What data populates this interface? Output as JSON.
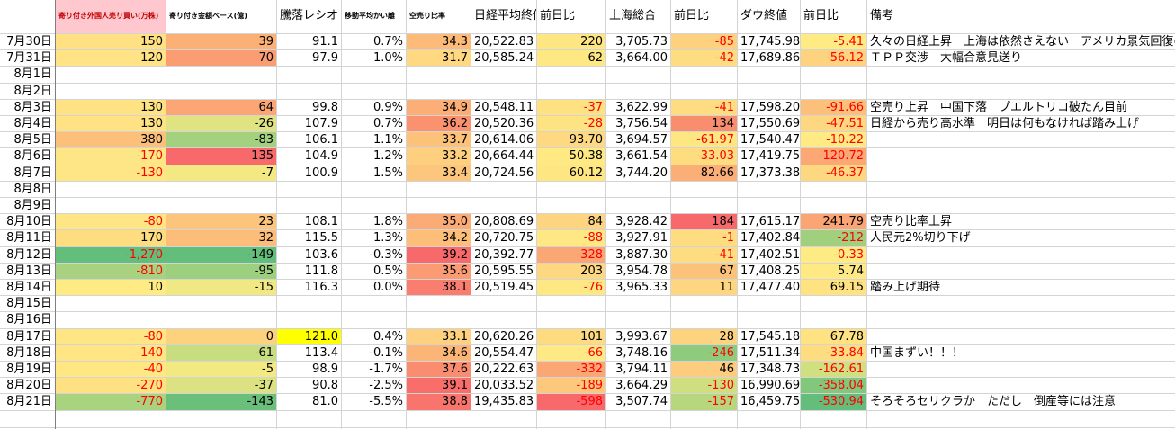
{
  "table": {
    "header": [
      "寄り付き外国人売り買い(万株)",
      "寄り付き金額ベース(億)",
      "騰落レシオ",
      "移動平均かい離",
      "空売り比率",
      "日経平均終値",
      "前日比",
      "上海総合",
      "前日比",
      "ダウ終値",
      "前日比",
      "備考"
    ],
    "header_fill": {
      "column": 0,
      "color": "#ffc7ce",
      "text_color": "#c00000"
    },
    "small_header_columns": [
      0,
      1,
      3,
      4
    ],
    "negative_red_columns": [
      0,
      6,
      8,
      10
    ],
    "negative_color": "#ff0000",
    "rows": [
      {
        "date": "7月30日",
        "cells": [
          "150",
          "39",
          "91.1",
          "0.7%",
          "34.3",
          "20,522.83",
          "220",
          "3,705.73",
          "-85",
          "17,745.98",
          "-5.41",
          "久々の日経上昇　上海は依然さえない　アメリカ景気回復の流れ"
        ],
        "fills": [
          "#ffe083",
          "#fbb176",
          null,
          null,
          "#fcbb78",
          null,
          "#fee683",
          null,
          "#fed17f",
          null,
          "#ffeb84",
          null
        ]
      },
      {
        "date": "7月31日",
        "cells": [
          "120",
          "70",
          "97.9",
          "1.0%",
          "31.7",
          "20,585.24",
          "62",
          "3,664.00",
          "-42",
          "17,689.86",
          "-56.12",
          "ＴＰＰ交渉　大幅合意見送り"
        ],
        "fills": [
          "#ffe384",
          "#fa9d72",
          null,
          null,
          "#fed981",
          null,
          "#fee883",
          null,
          "#fedc81",
          null,
          "#fed380",
          null
        ]
      },
      {
        "date": "8月1日"
      },
      {
        "date": "8月2日"
      },
      {
        "date": "8月3日",
        "cells": [
          "130",
          "64",
          "99.8",
          "0.9%",
          "34.9",
          "20,548.11",
          "-37",
          "3,622.99",
          "-41",
          "17,598.20",
          "-91.66",
          "空売り上昇　中国下落　プエルトリコ破たん目前"
        ],
        "fills": [
          "#ffe284",
          "#fba674",
          null,
          null,
          "#fbaf76",
          null,
          "#fee282",
          null,
          "#fedc81",
          null,
          "#fcc07a",
          null
        ]
      },
      {
        "date": "8月4日",
        "cells": [
          "130",
          "-26",
          "107.9",
          "0.7%",
          "36.2",
          "20,520.36",
          "-28",
          "3,756.54",
          "134",
          "17,550.69",
          "-47.51",
          "日経から売り高水準　明日は何もなければ踏み上げ"
        ],
        "fills": [
          "#ffe284",
          "#dfe382",
          null,
          null,
          "#fa9270",
          null,
          "#fee382",
          null,
          "#f98e6f",
          null,
          "#fed881",
          null
        ]
      },
      {
        "date": "8月5日",
        "cells": [
          "380",
          "-83",
          "106.1",
          "1.1%",
          "33.7",
          "20,614.06",
          "93.70",
          "3,694.57",
          "-61.97",
          "17,540.47",
          "-10.22"
        ],
        "fills": [
          "#fcc07a",
          "#a4d17e",
          null,
          null,
          "#fcc27a",
          null,
          "#fed981",
          null,
          "#fee683",
          null,
          "#ffea84"
        ]
      },
      {
        "date": "8月6日",
        "cells": [
          "-170",
          "135",
          "104.9",
          "1.2%",
          "33.2",
          "20,664.44",
          "50.38",
          "3,661.54",
          "-33.03",
          "17,419.75",
          "-120.72"
        ],
        "fills": [
          "#fde685",
          "#f8696b",
          null,
          null,
          "#fdcf7e",
          null,
          "#ffe983",
          null,
          "#fedd81",
          null,
          "#fba875"
        ]
      },
      {
        "date": "8月7日",
        "cells": [
          "-130",
          "-7",
          "100.9",
          "1.5%",
          "33.4",
          "20,724.56",
          "60.12",
          "3,744.20",
          "82.66",
          "17,373.38",
          "-46.37"
        ],
        "fills": [
          "#ffe684",
          "#f4e883",
          null,
          null,
          "#fcc77c",
          null,
          "#fee683",
          null,
          "#fbae76",
          null,
          "#fed880"
        ]
      },
      {
        "date": "8月8日"
      },
      {
        "date": "8月9日"
      },
      {
        "date": "8月10日",
        "cells": [
          "-80",
          "23",
          "108.1",
          "1.8%",
          "35.0",
          "20,808.69",
          "84",
          "3,928.42",
          "184",
          "17,615.17",
          "241.79",
          "空売り比率上昇"
        ],
        "fills": [
          "#ffe684",
          "#fcc57b",
          null,
          null,
          "#fbab75",
          null,
          "#fdd580",
          null,
          "#f8696b",
          null,
          "#fba474",
          null
        ]
      },
      {
        "date": "8月11日",
        "cells": [
          "170",
          "32",
          "115.5",
          "1.3%",
          "34.2",
          "20,720.75",
          "-88",
          "3,927.91",
          "-1",
          "17,402.84",
          "-212",
          "人民元2%切り下げ"
        ],
        "fills": [
          "#fedd81",
          "#fbbd79",
          null,
          null,
          "#fcbe79",
          null,
          "#fee884",
          null,
          "#fedd81",
          null,
          "#a0d07e",
          null
        ]
      },
      {
        "date": "8月12日",
        "cells": [
          "-1,270",
          "-149",
          "103.6",
          "-0.3%",
          "39.2",
          "20,392.77",
          "-328",
          "3,887.30",
          "-41",
          "17,402.51",
          "-0.33"
        ],
        "fills": [
          "#63be7b",
          "#63be7b",
          null,
          null,
          "#f8696b",
          null,
          "#fba775",
          null,
          "#fedc81",
          null,
          "#ffeb84"
        ]
      },
      {
        "date": "8月13日",
        "cells": [
          "-810",
          "-95",
          "111.8",
          "0.5%",
          "35.6",
          "20,595.55",
          "203",
          "3,954.78",
          "67",
          "17,408.25",
          "5.74"
        ],
        "fills": [
          "#a8d27f",
          "#9ccf7e",
          null,
          null,
          "#fb9b73",
          null,
          "#fed880",
          null,
          "#fcc27a",
          null,
          "#ffe984"
        ]
      },
      {
        "date": "8月14日",
        "cells": [
          "10",
          "-15",
          "116.3",
          "0.0%",
          "38.1",
          "20,519.45",
          "-76",
          "3,965.33",
          "11",
          "17,477.40",
          "69.15",
          "踏み上げ期待"
        ],
        "fills": [
          "#ffeb84",
          "#f0e883",
          null,
          null,
          "#f97e6f",
          null,
          "#fee883",
          null,
          "#fed580",
          null,
          "#ffe383",
          null
        ]
      },
      {
        "date": "8月15日"
      },
      {
        "date": "8月16日"
      },
      {
        "date": "8月17日",
        "cells": [
          "-80",
          "0",
          "121.0",
          "0.4%",
          "33.1",
          "20,620.26",
          "101",
          "3,993.67",
          "28",
          "17,545.18",
          "67.78"
        ],
        "fills": [
          "#ffe584",
          "#fdd27f",
          "#ffff00",
          null,
          "#fdd17f",
          null,
          "#fedb81",
          null,
          "#fed37f",
          null,
          "#ffe383"
        ]
      },
      {
        "date": "8月18日",
        "cells": [
          "-140",
          "-61",
          "113.4",
          "-0.1%",
          "34.6",
          "20,554.47",
          "-66",
          "3,748.16",
          "-246",
          "17,511.34",
          "-33.84",
          "中国まずい！！！"
        ],
        "fills": [
          "#ffe584",
          "#c7dd80",
          null,
          null,
          "#fbb577",
          null,
          "#fee984",
          null,
          "#8fcb7d",
          null,
          "#fedd81",
          null
        ]
      },
      {
        "date": "8月19日",
        "cells": [
          "-40",
          "-5",
          "98.9",
          "-1.7%",
          "37.6",
          "20,222.63",
          "-332",
          "3,794.11",
          "46",
          "17,348.73",
          "-162.61"
        ],
        "fills": [
          "#ffe884",
          "#f2e983",
          null,
          null,
          "#fa8c70",
          null,
          "#fba775",
          null,
          "#fdcc7e",
          null,
          "#d0e080"
        ]
      },
      {
        "date": "8月20日",
        "cells": [
          "-270",
          "-37",
          "90.8",
          "-2.5%",
          "39.1",
          "20,033.52",
          "-189",
          "3,664.29",
          "-130",
          "16,990.69",
          "-358.04"
        ],
        "fills": [
          "#fde183",
          "#dce182",
          null,
          null,
          "#f86e6b",
          null,
          "#fdc77c",
          null,
          "#cfdf80",
          null,
          "#81c77c"
        ]
      },
      {
        "date": "8月21日",
        "cells": [
          "-770",
          "-143",
          "81.0",
          "-5.5%",
          "38.8",
          "19,435.83",
          "-598",
          "3,507.74",
          "-157",
          "16,459.75",
          "-530.94",
          "そろそろセリクラか　ただし　倒産等には注意"
        ],
        "fills": [
          "#aad37f",
          "#6ac07b",
          null,
          null,
          "#f8756d",
          null,
          "#f8696b",
          null,
          "#b7d77f",
          null,
          "#63be7b",
          null
        ]
      }
    ]
  }
}
